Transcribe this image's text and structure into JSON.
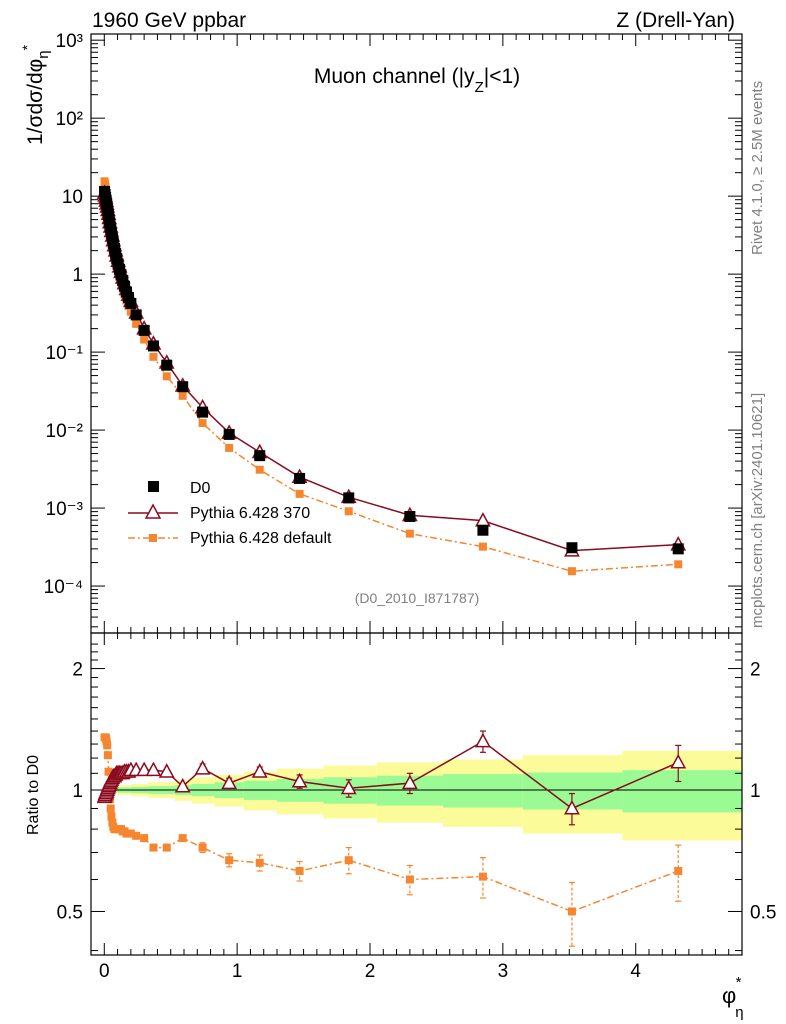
{
  "header": {
    "left": "1960 GeV ppbar",
    "right": "Z (Drell-Yan)"
  },
  "side_labels": {
    "rivet": "Rivet 4.1.0, ≥ 2.5M events",
    "mcplots": "mcplots.cern.ch [arXiv:2401.10621]"
  },
  "colors": {
    "data": "#000000",
    "pythia370": "#8b0a1e",
    "pythia_default": "#f5862f",
    "band_inner": "#9afa93",
    "band_outer": "#fbfb99"
  },
  "chart_data": [
    {
      "type": "scatter",
      "panel": "main",
      "title": "Muon channel (|y_Z|<1)",
      "title_main": "Muon channel (|y",
      "title_sub": "Z",
      "title_end": "|<1)",
      "analysis_id": "(D0_2010_I871787)",
      "ylabel": "1/σdσ/dφη*",
      "yscale": "log",
      "ylim": [
        2.5e-05,
        1200
      ],
      "xlim": [
        -0.1,
        4.8
      ],
      "legend_position": "bottom-left",
      "ytick_labels": [
        "10⁻⁴",
        "10⁻³",
        "10⁻²",
        "10⁻¹",
        "1",
        "10",
        "10²",
        "10³"
      ],
      "ytick_values": [
        0.0001,
        0.001,
        0.01,
        0.1,
        1,
        10,
        100,
        1000
      ],
      "series": [
        {
          "name": "D0",
          "marker": "square",
          "x": [
            0.002,
            0.006,
            0.01,
            0.014,
            0.018,
            0.022,
            0.027,
            0.032,
            0.037,
            0.042,
            0.048,
            0.054,
            0.061,
            0.068,
            0.076,
            0.085,
            0.094,
            0.104,
            0.115,
            0.126,
            0.139,
            0.152,
            0.167,
            0.182,
            0.2,
            0.24,
            0.3,
            0.37,
            0.47,
            0.59,
            0.74,
            0.94,
            1.17,
            1.47,
            1.84,
            2.3,
            2.85,
            3.52,
            4.32
          ],
          "values": [
            11.5,
            10.5,
            9.6,
            8.8,
            8.0,
            7.2,
            6.4,
            5.7,
            5.0,
            4.4,
            3.85,
            3.35,
            2.9,
            2.5,
            2.15,
            1.85,
            1.58,
            1.35,
            1.15,
            0.98,
            0.83,
            0.7,
            0.59,
            0.5,
            0.42,
            0.3,
            0.19,
            0.12,
            0.068,
            0.036,
            0.017,
            0.0088,
            0.0047,
            0.0024,
            0.00135,
            0.00078,
            0.00052,
            0.00031,
            0.0003
          ]
        },
        {
          "name": "Pythia 6.428 370",
          "marker": "triangle-open",
          "x": [
            0.002,
            0.006,
            0.01,
            0.014,
            0.018,
            0.022,
            0.027,
            0.032,
            0.037,
            0.042,
            0.048,
            0.054,
            0.061,
            0.068,
            0.076,
            0.085,
            0.094,
            0.104,
            0.115,
            0.126,
            0.139,
            0.152,
            0.167,
            0.182,
            0.2,
            0.24,
            0.3,
            0.37,
            0.47,
            0.59,
            0.74,
            0.94,
            1.17,
            1.47,
            1.84,
            2.3,
            2.85,
            3.52,
            4.32
          ],
          "values": [
            11.0,
            10.1,
            9.4,
            8.7,
            8.0,
            7.3,
            6.6,
            5.9,
            5.2,
            4.6,
            4.05,
            3.55,
            3.1,
            2.7,
            2.33,
            2.0,
            1.72,
            1.47,
            1.25,
            1.06,
            0.9,
            0.76,
            0.64,
            0.54,
            0.45,
            0.32,
            0.2,
            0.128,
            0.073,
            0.037,
            0.0195,
            0.0092,
            0.0052,
            0.0025,
            0.00138,
            0.00081,
            0.00069,
            0.000285,
            0.00034
          ]
        },
        {
          "name": "Pythia 6.428 default",
          "marker": "square-small",
          "x": [
            0.002,
            0.006,
            0.01,
            0.014,
            0.018,
            0.022,
            0.027,
            0.032,
            0.037,
            0.042,
            0.048,
            0.054,
            0.061,
            0.068,
            0.076,
            0.085,
            0.094,
            0.104,
            0.115,
            0.126,
            0.139,
            0.152,
            0.167,
            0.182,
            0.2,
            0.24,
            0.3,
            0.37,
            0.47,
            0.59,
            0.74,
            0.94,
            1.17,
            1.47,
            1.84,
            2.3,
            2.85,
            3.52,
            4.32
          ],
          "values": [
            15.5,
            14.2,
            13.0,
            11.8,
            10.6,
            9.3,
            7.8,
            6.3,
            5.1,
            4.1,
            3.3,
            2.75,
            2.3,
            1.98,
            1.71,
            1.48,
            1.27,
            1.08,
            0.92,
            0.78,
            0.66,
            0.55,
            0.46,
            0.39,
            0.33,
            0.23,
            0.145,
            0.087,
            0.049,
            0.0275,
            0.0123,
            0.0059,
            0.0031,
            0.00152,
            0.00091,
            0.00047,
            0.00032,
            0.000155,
            0.00019
          ]
        }
      ]
    },
    {
      "type": "scatter",
      "panel": "ratio",
      "ylabel": "Ratio to D0",
      "xlabel": "φη*",
      "xlabel_main": "φ",
      "xlabel_sup": "*",
      "xlabel_sub": "η",
      "yscale": "log",
      "ylim": [
        0.39,
        2.45
      ],
      "xlim": [
        -0.1,
        4.8
      ],
      "ytick_labels": [
        "0.5",
        "1",
        "2"
      ],
      "ytick_values": [
        0.5,
        1,
        2
      ],
      "xtick_labels": [
        "0",
        "1",
        "2",
        "3",
        "4"
      ],
      "xtick_values": [
        0,
        1,
        2,
        3,
        4
      ],
      "band_edges": [
        0,
        0.1,
        0.2,
        0.33,
        0.53,
        0.66,
        0.83,
        1.05,
        1.3,
        1.65,
        2.05,
        2.55,
        3.15,
        3.9,
        4.8
      ],
      "band_inner": [
        0.012,
        0.015,
        0.018,
        0.022,
        0.028,
        0.035,
        0.045,
        0.055,
        0.065,
        0.075,
        0.085,
        0.095,
        0.105,
        0.12
      ],
      "band_outer": [
        0.02,
        0.028,
        0.035,
        0.045,
        0.06,
        0.075,
        0.09,
        0.11,
        0.13,
        0.15,
        0.17,
        0.19,
        0.22,
        0.25
      ],
      "series": [
        {
          "name": "Pythia 6.428 370",
          "marker": "triangle-open",
          "x": [
            0.002,
            0.006,
            0.01,
            0.014,
            0.018,
            0.022,
            0.027,
            0.032,
            0.037,
            0.042,
            0.048,
            0.054,
            0.061,
            0.068,
            0.076,
            0.085,
            0.094,
            0.104,
            0.115,
            0.126,
            0.139,
            0.152,
            0.167,
            0.182,
            0.2,
            0.24,
            0.3,
            0.37,
            0.47,
            0.59,
            0.74,
            0.94,
            1.17,
            1.47,
            1.84,
            2.3,
            2.85,
            3.52,
            4.32
          ],
          "values": [
            0.96,
            0.97,
            0.98,
            0.98,
            0.99,
            1.0,
            1.01,
            1.02,
            1.03,
            1.04,
            1.05,
            1.06,
            1.07,
            1.08,
            1.08,
            1.09,
            1.1,
            1.1,
            1.1,
            1.1,
            1.1,
            1.11,
            1.11,
            1.11,
            1.12,
            1.12,
            1.12,
            1.12,
            1.11,
            1.02,
            1.13,
            1.04,
            1.11,
            1.05,
            1.01,
            1.04,
            1.32,
            0.9,
            1.17
          ],
          "err": [
            0.02,
            0.02,
            0.02,
            0.02,
            0.02,
            0.02,
            0.02,
            0.02,
            0.02,
            0.02,
            0.02,
            0.02,
            0.02,
            0.02,
            0.02,
            0.02,
            0.02,
            0.02,
            0.02,
            0.02,
            0.02,
            0.02,
            0.02,
            0.02,
            0.02,
            0.02,
            0.02,
            0.02,
            0.02,
            0.02,
            0.03,
            0.03,
            0.03,
            0.04,
            0.05,
            0.06,
            0.08,
            0.08,
            0.12
          ]
        },
        {
          "name": "Pythia 6.428 default",
          "marker": "square-small",
          "x": [
            0.002,
            0.006,
            0.01,
            0.014,
            0.018,
            0.022,
            0.027,
            0.032,
            0.037,
            0.042,
            0.048,
            0.054,
            0.061,
            0.068,
            0.076,
            0.085,
            0.094,
            0.104,
            0.115,
            0.126,
            0.139,
            0.152,
            0.167,
            0.182,
            0.2,
            0.24,
            0.3,
            0.37,
            0.47,
            0.59,
            0.74,
            0.94,
            1.17,
            1.47,
            1.84,
            2.3,
            2.85,
            3.52,
            4.32
          ],
          "values": [
            1.35,
            1.35,
            1.35,
            1.34,
            1.32,
            1.29,
            1.22,
            1.11,
            1.02,
            0.95,
            0.9,
            0.86,
            0.83,
            0.81,
            0.8,
            0.8,
            0.8,
            0.8,
            0.8,
            0.8,
            0.79,
            0.79,
            0.78,
            0.78,
            0.78,
            0.77,
            0.76,
            0.72,
            0.72,
            0.76,
            0.72,
            0.67,
            0.66,
            0.63,
            0.67,
            0.6,
            0.61,
            0.5,
            0.63
          ],
          "err": [
            0.01,
            0.01,
            0.01,
            0.01,
            0.01,
            0.01,
            0.01,
            0.01,
            0.01,
            0.01,
            0.01,
            0.01,
            0.01,
            0.01,
            0.01,
            0.01,
            0.01,
            0.01,
            0.01,
            0.01,
            0.01,
            0.01,
            0.01,
            0.01,
            0.01,
            0.01,
            0.01,
            0.01,
            0.01,
            0.015,
            0.02,
            0.025,
            0.03,
            0.035,
            0.05,
            0.05,
            0.07,
            0.09,
            0.1
          ]
        }
      ]
    }
  ]
}
